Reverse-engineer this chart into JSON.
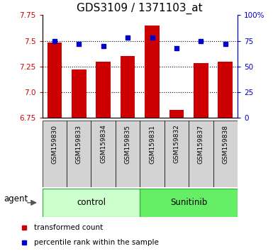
{
  "title": "GDS3109 / 1371103_at",
  "samples": [
    "GSM159830",
    "GSM159833",
    "GSM159834",
    "GSM159835",
    "GSM159831",
    "GSM159832",
    "GSM159837",
    "GSM159838"
  ],
  "bar_values": [
    7.48,
    7.22,
    7.3,
    7.35,
    7.65,
    6.83,
    7.28,
    7.3
  ],
  "percentile_values": [
    75,
    72,
    70,
    78,
    78,
    68,
    75,
    72
  ],
  "bar_color": "#cc0000",
  "dot_color": "#0000cc",
  "ylim_left": [
    6.75,
    7.75
  ],
  "ylim_right": [
    0,
    100
  ],
  "yticks_left": [
    6.75,
    7.0,
    7.25,
    7.5,
    7.75
  ],
  "yticks_right": [
    0,
    25,
    50,
    75,
    100
  ],
  "ytick_labels_right": [
    "0",
    "25",
    "50",
    "75",
    "100%"
  ],
  "groups": [
    {
      "label": "control",
      "indices": [
        0,
        1,
        2,
        3
      ],
      "color": "#ccffcc"
    },
    {
      "label": "Sunitinib",
      "indices": [
        4,
        5,
        6,
        7
      ],
      "color": "#66ee66"
    }
  ],
  "agent_label": "agent",
  "legend_bar_label": "transformed count",
  "legend_dot_label": "percentile rank within the sample",
  "bar_width": 0.6,
  "grid_color": "#000000",
  "background_labels": "#d3d3d3",
  "title_fontsize": 11,
  "tick_fontsize": 7.5,
  "sample_fontsize": 6.5,
  "group_fontsize": 8.5,
  "legend_fontsize": 7.5,
  "agent_fontsize": 8.5
}
